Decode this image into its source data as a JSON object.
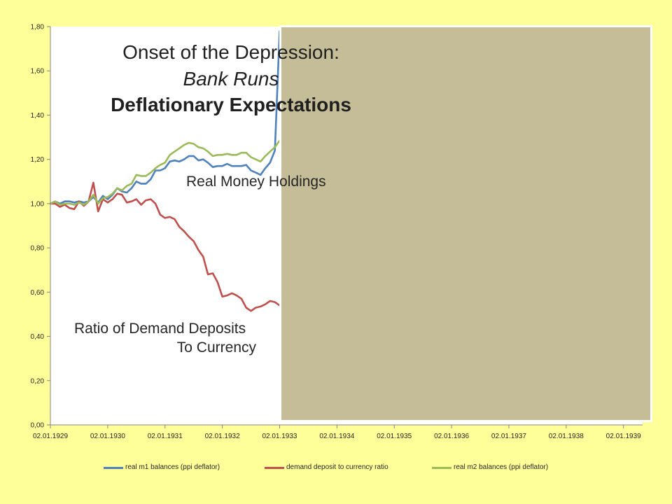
{
  "slide": {
    "title_line1": "Onset of the Depression:",
    "title_line2": "Bank Runs",
    "title_line3": "Deflationary Expectations",
    "label_real_money": "Real Money Holdings",
    "label_ratio_line1": "Ratio of Demand Deposits",
    "label_ratio_line2": "To Currency"
  },
  "colors": {
    "background": "#FFFF99",
    "plot_area": "#FFFFFF",
    "overlay_box": "#C4BD97",
    "axis": "#868686"
  },
  "chart_data": {
    "type": "line",
    "xlim": [
      "1929-01",
      "1939-05"
    ],
    "ylim": [
      0,
      1.8
    ],
    "grid": false,
    "legend_position": "bottom",
    "xticks": [
      "02.01.1929",
      "02.01.1930",
      "02.01.1931",
      "02.01.1932",
      "02.01.1933",
      "02.01.1934",
      "02.01.1935",
      "02.01.1936",
      "02.01.1937",
      "02.01.1938",
      "02.01.1939"
    ],
    "yticks": [
      "0,00",
      "0,20",
      "0,40",
      "0,60",
      "0,80",
      "1,00",
      "1,20",
      "1,40",
      "1,60",
      "1,80"
    ],
    "x": [
      "1929-01",
      "1929-02",
      "1929-03",
      "1929-04",
      "1929-05",
      "1929-06",
      "1929-07",
      "1929-08",
      "1929-09",
      "1929-10",
      "1929-11",
      "1929-12",
      "1930-01",
      "1930-02",
      "1930-03",
      "1930-04",
      "1930-05",
      "1930-06",
      "1930-07",
      "1930-08",
      "1930-09",
      "1930-10",
      "1930-11",
      "1930-12",
      "1931-01",
      "1931-02",
      "1931-03",
      "1931-04",
      "1931-05",
      "1931-06",
      "1931-07",
      "1931-08",
      "1931-09",
      "1931-10",
      "1931-11",
      "1931-12",
      "1932-01",
      "1932-02",
      "1932-03",
      "1932-04",
      "1932-05",
      "1932-06",
      "1932-07",
      "1932-08",
      "1932-09",
      "1932-10",
      "1932-11",
      "1932-12",
      "1933-01"
    ],
    "series": [
      {
        "name": "real m1 balances (ppi deflator)",
        "color": "#4F81BD",
        "values": [
          1.0,
          1.01,
          1.0,
          1.01,
          1.01,
          1.005,
          1.01,
          1.005,
          1.01,
          1.03,
          1.005,
          1.035,
          1.02,
          1.04,
          1.07,
          1.055,
          1.05,
          1.07,
          1.1,
          1.09,
          1.09,
          1.11,
          1.15,
          1.15,
          1.16,
          1.19,
          1.195,
          1.19,
          1.2,
          1.215,
          1.215,
          1.195,
          1.2,
          1.185,
          1.165,
          1.17,
          1.17,
          1.18,
          1.17,
          1.17,
          1.17,
          1.175,
          1.15,
          1.14,
          1.13,
          1.16,
          1.185,
          1.24,
          1.78
        ]
      },
      {
        "name": "demand deposit to currency ratio",
        "color": "#C0504D",
        "values": [
          1.0,
          1.0,
          0.985,
          0.995,
          0.98,
          0.975,
          1.01,
          0.99,
          1.01,
          1.095,
          0.965,
          1.02,
          1.005,
          1.02,
          1.045,
          1.04,
          1.005,
          1.01,
          1.02,
          0.995,
          1.015,
          1.02,
          1.0,
          0.95,
          0.935,
          0.94,
          0.93,
          0.895,
          0.875,
          0.85,
          0.83,
          0.79,
          0.76,
          0.68,
          0.685,
          0.645,
          0.58,
          0.585,
          0.595,
          0.585,
          0.57,
          0.53,
          0.515,
          0.53,
          0.535,
          0.545,
          0.56,
          0.555,
          0.54
        ]
      },
      {
        "name": "real m2 balances (ppi deflator)",
        "color": "#9BBB59",
        "values": [
          1.0,
          1.01,
          0.995,
          1.0,
          1.0,
          0.995,
          1.005,
          0.995,
          1.01,
          1.04,
          1.0,
          1.025,
          1.03,
          1.045,
          1.07,
          1.06,
          1.08,
          1.09,
          1.13,
          1.125,
          1.125,
          1.14,
          1.16,
          1.175,
          1.185,
          1.22,
          1.235,
          1.25,
          1.265,
          1.275,
          1.27,
          1.255,
          1.25,
          1.235,
          1.215,
          1.22,
          1.22,
          1.225,
          1.22,
          1.22,
          1.23,
          1.23,
          1.21,
          1.2,
          1.19,
          1.215,
          1.235,
          1.255,
          1.285
        ]
      }
    ]
  }
}
